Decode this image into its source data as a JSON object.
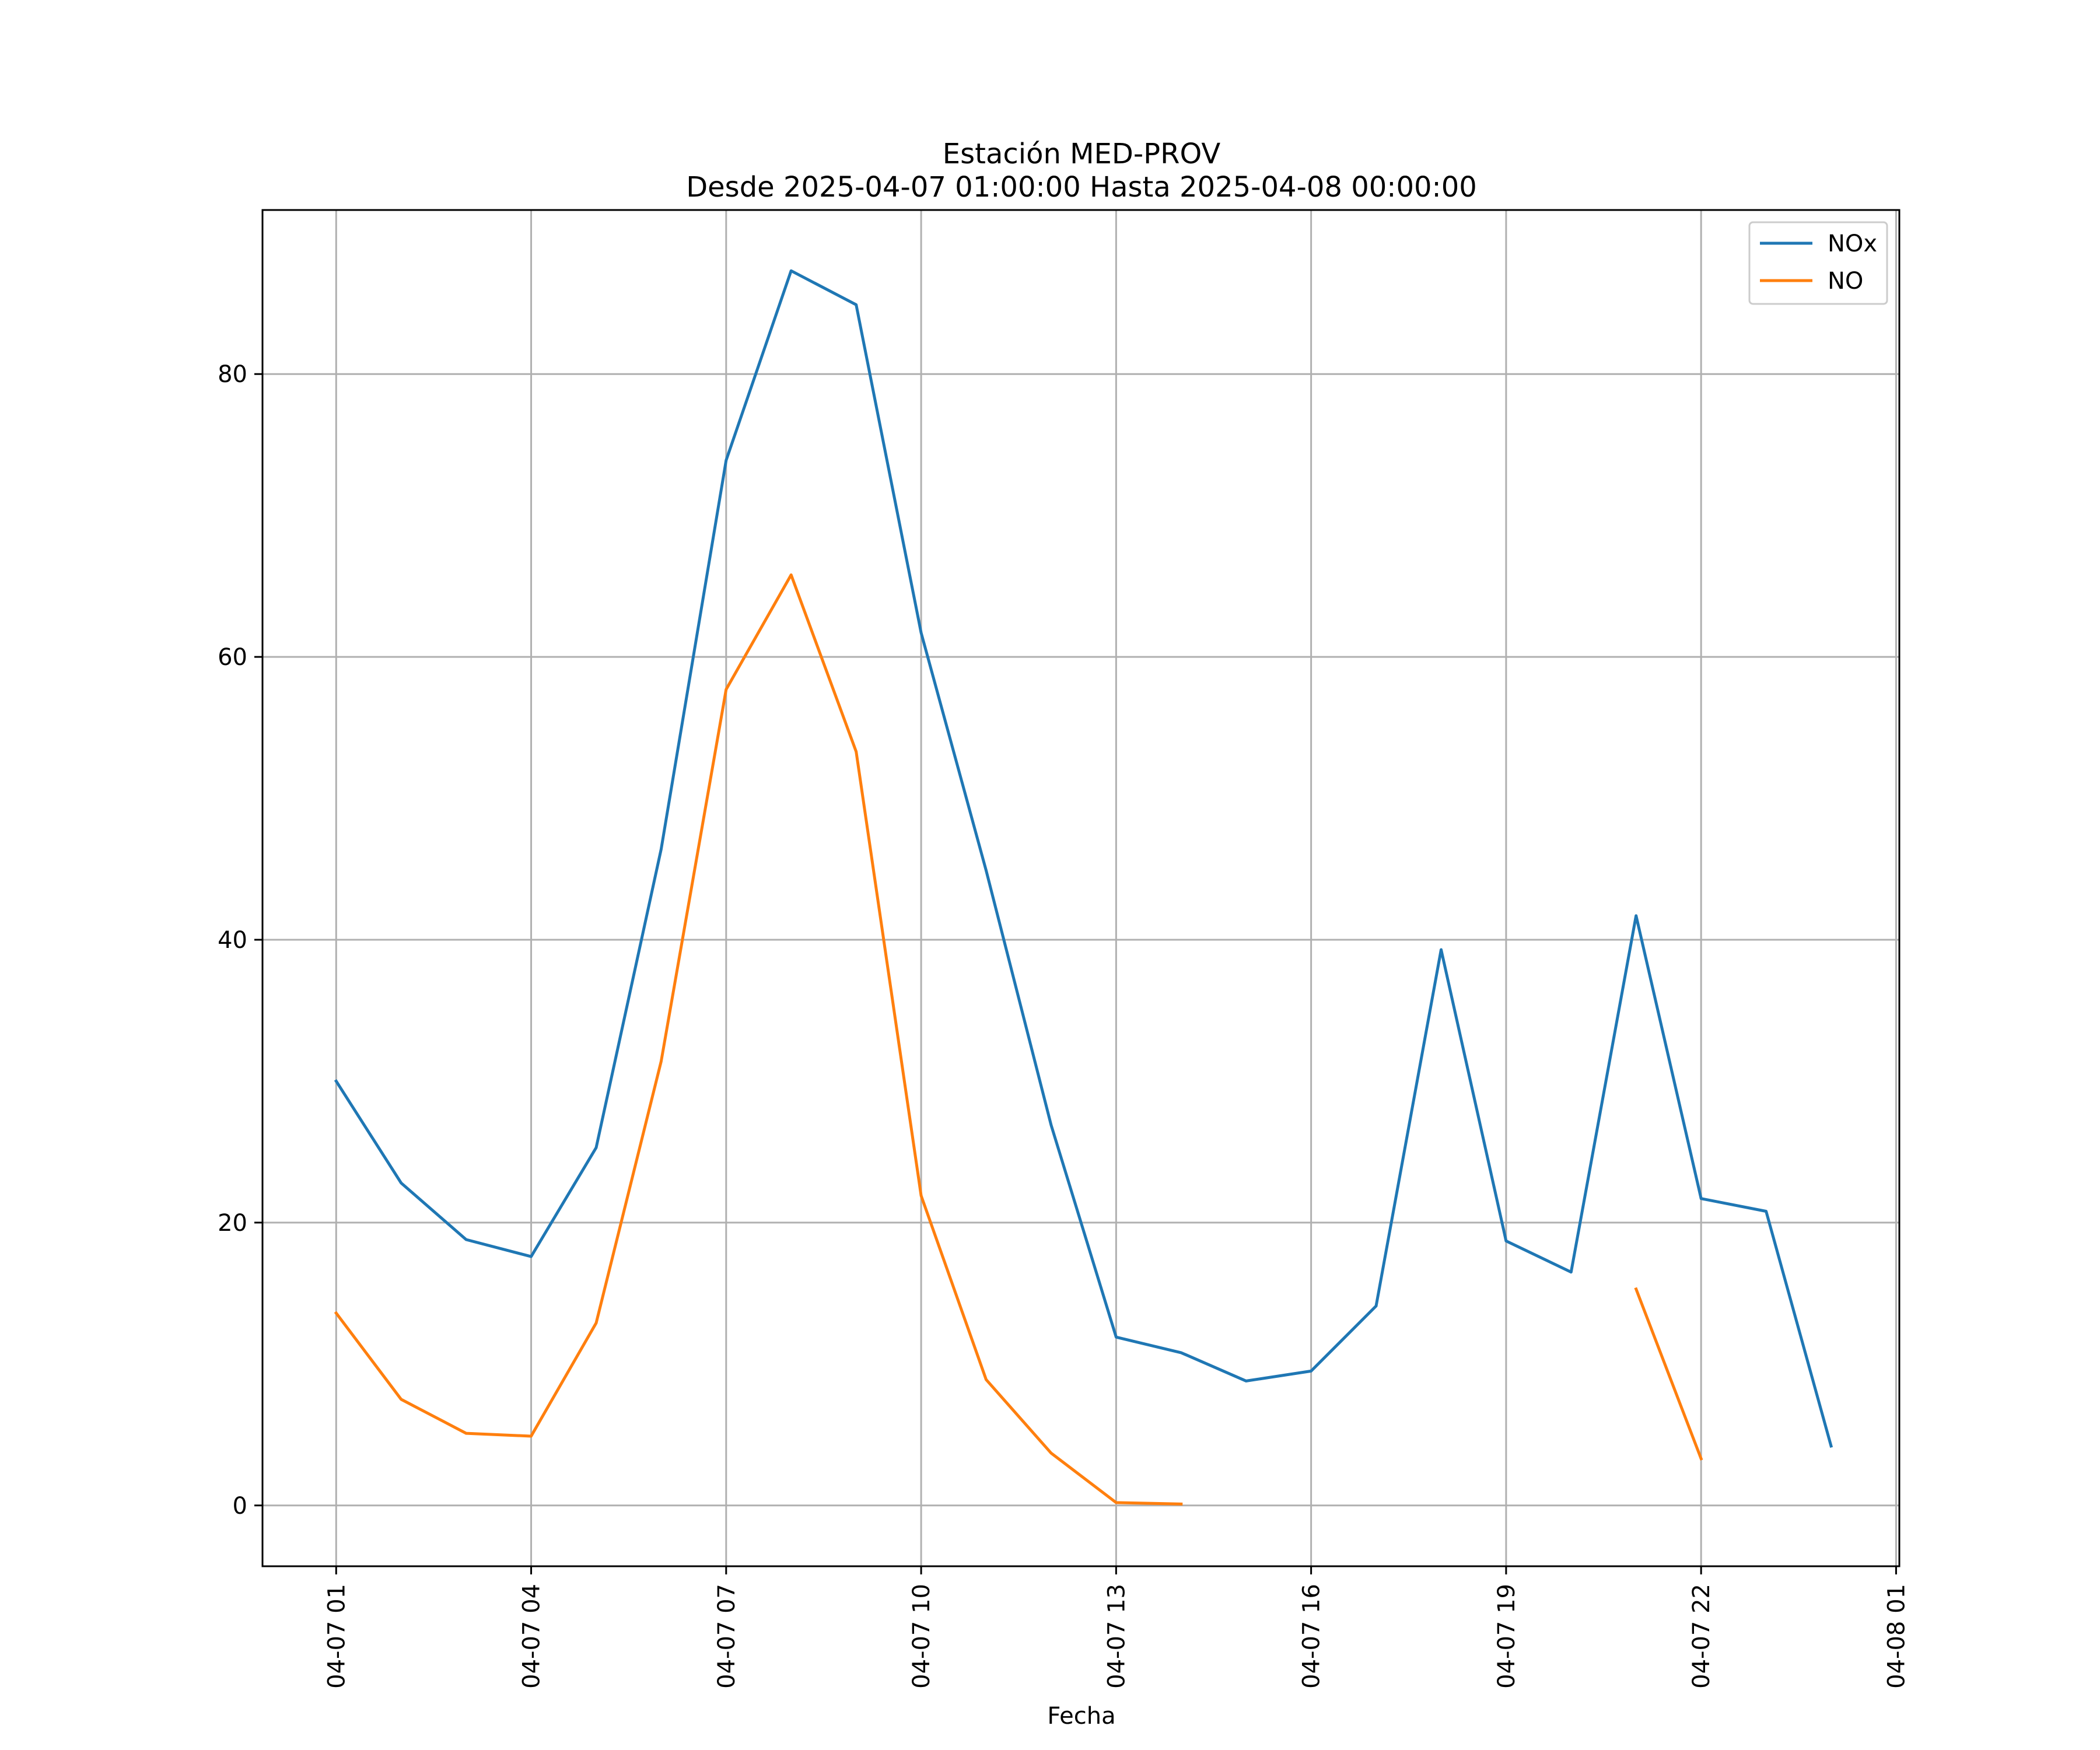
{
  "chart_data": {
    "type": "line",
    "title": "Estación MED-PROV",
    "subtitle": "Desde 2025-04-07 01:00:00 Hasta 2025-04-08 00:00:00",
    "xlabel": "Fecha",
    "ylabel": "",
    "x": [
      "2025-04-07 01:00",
      "2025-04-07 02:00",
      "2025-04-07 03:00",
      "2025-04-07 04:00",
      "2025-04-07 05:00",
      "2025-04-07 06:00",
      "2025-04-07 07:00",
      "2025-04-07 08:00",
      "2025-04-07 09:00",
      "2025-04-07 10:00",
      "2025-04-07 11:00",
      "2025-04-07 12:00",
      "2025-04-07 13:00",
      "2025-04-07 14:00",
      "2025-04-07 15:00",
      "2025-04-07 16:00",
      "2025-04-07 17:00",
      "2025-04-07 18:00",
      "2025-04-07 19:00",
      "2025-04-07 20:00",
      "2025-04-07 21:00",
      "2025-04-07 22:00",
      "2025-04-07 23:00",
      "2025-04-08 00:00"
    ],
    "series": [
      {
        "name": "NOx",
        "color": "#1f77b4",
        "values": [
          30.0,
          22.8,
          18.8,
          17.6,
          25.3,
          46.4,
          73.9,
          87.3,
          84.9,
          61.7,
          44.9,
          26.9,
          11.9,
          10.8,
          8.8,
          9.5,
          14.1,
          39.3,
          18.7,
          16.5,
          41.7,
          21.7,
          20.8,
          4.2
        ]
      },
      {
        "name": "NO",
        "color": "#ff7f0e",
        "values": [
          13.6,
          7.5,
          5.1,
          4.9,
          12.9,
          31.4,
          57.7,
          65.8,
          53.3,
          21.9,
          8.9,
          3.7,
          0.2,
          0.1,
          null,
          null,
          null,
          null,
          null,
          null,
          15.3,
          3.3,
          null,
          null
        ]
      }
    ],
    "xticks": [
      "04-07 01",
      "04-07 04",
      "04-07 07",
      "04-07 10",
      "04-07 13",
      "04-07 16",
      "04-07 19",
      "04-07 22",
      "04-08 01"
    ],
    "yticks": [
      0,
      20,
      40,
      60,
      80
    ],
    "xlim": [
      "2025-04-06 23:52",
      "2025-04-08 01:03"
    ],
    "ylim": [
      -4.3,
      91.6
    ],
    "grid": true,
    "legend_position": "upper right"
  }
}
